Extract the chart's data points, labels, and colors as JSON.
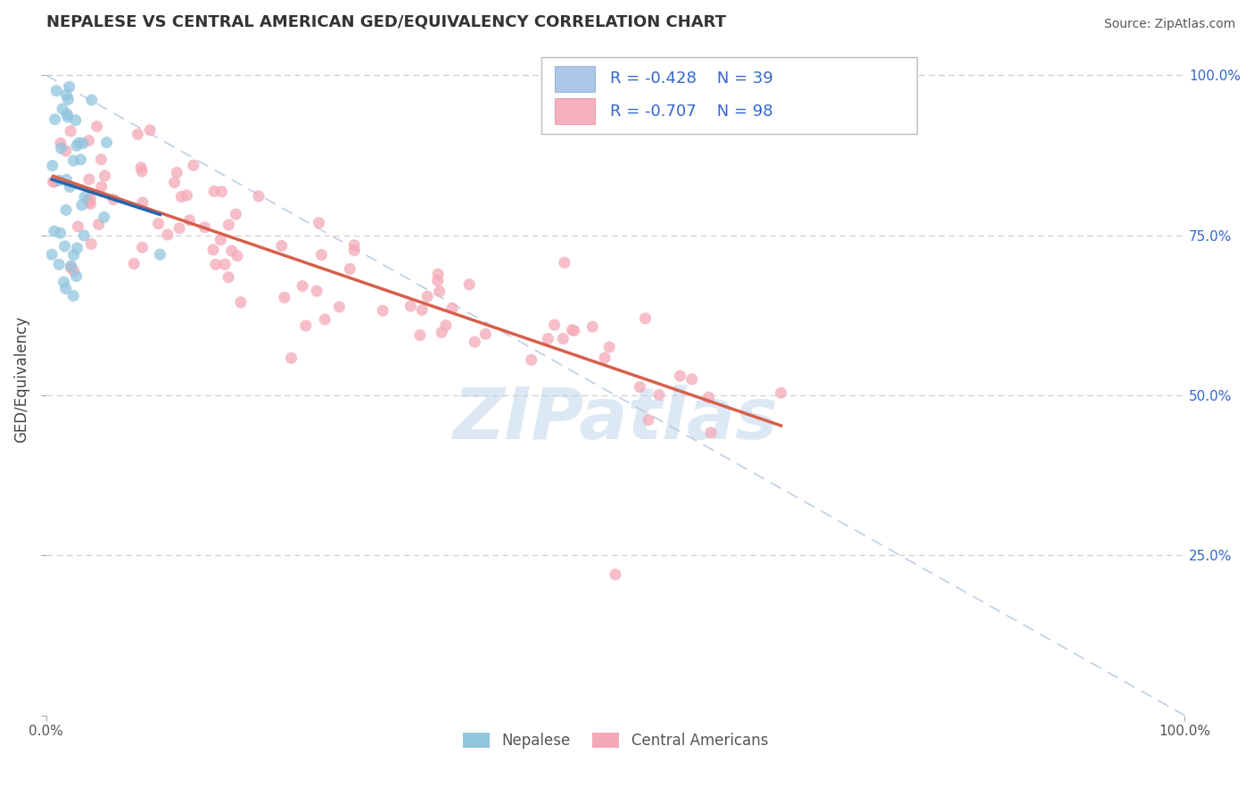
{
  "title": "NEPALESE VS CENTRAL AMERICAN GED/EQUIVALENCY CORRELATION CHART",
  "source": "Source: ZipAtlas.com",
  "ylabel": "GED/Equivalency",
  "xlim": [
    0.0,
    1.0
  ],
  "ylim": [
    0.0,
    1.05
  ],
  "legend_labels": [
    "Nepalese",
    "Central Americans"
  ],
  "nepalese_R": "-0.428",
  "nepalese_N": "39",
  "central_R": "-0.707",
  "central_N": "98",
  "nepalese_color": "#92c5de",
  "central_color": "#f4a9b8",
  "nepalese_line_color": "#2166ac",
  "central_line_color": "#d6604d",
  "diagonal_color": "#b0c4de",
  "legend_text_color": "#3366cc",
  "background_color": "#ffffff",
  "grid_color": "#cccccc",
  "watermark_color": "#dce9f5",
  "title_color": "#333333",
  "tick_color": "#555555",
  "source_color": "#555555"
}
